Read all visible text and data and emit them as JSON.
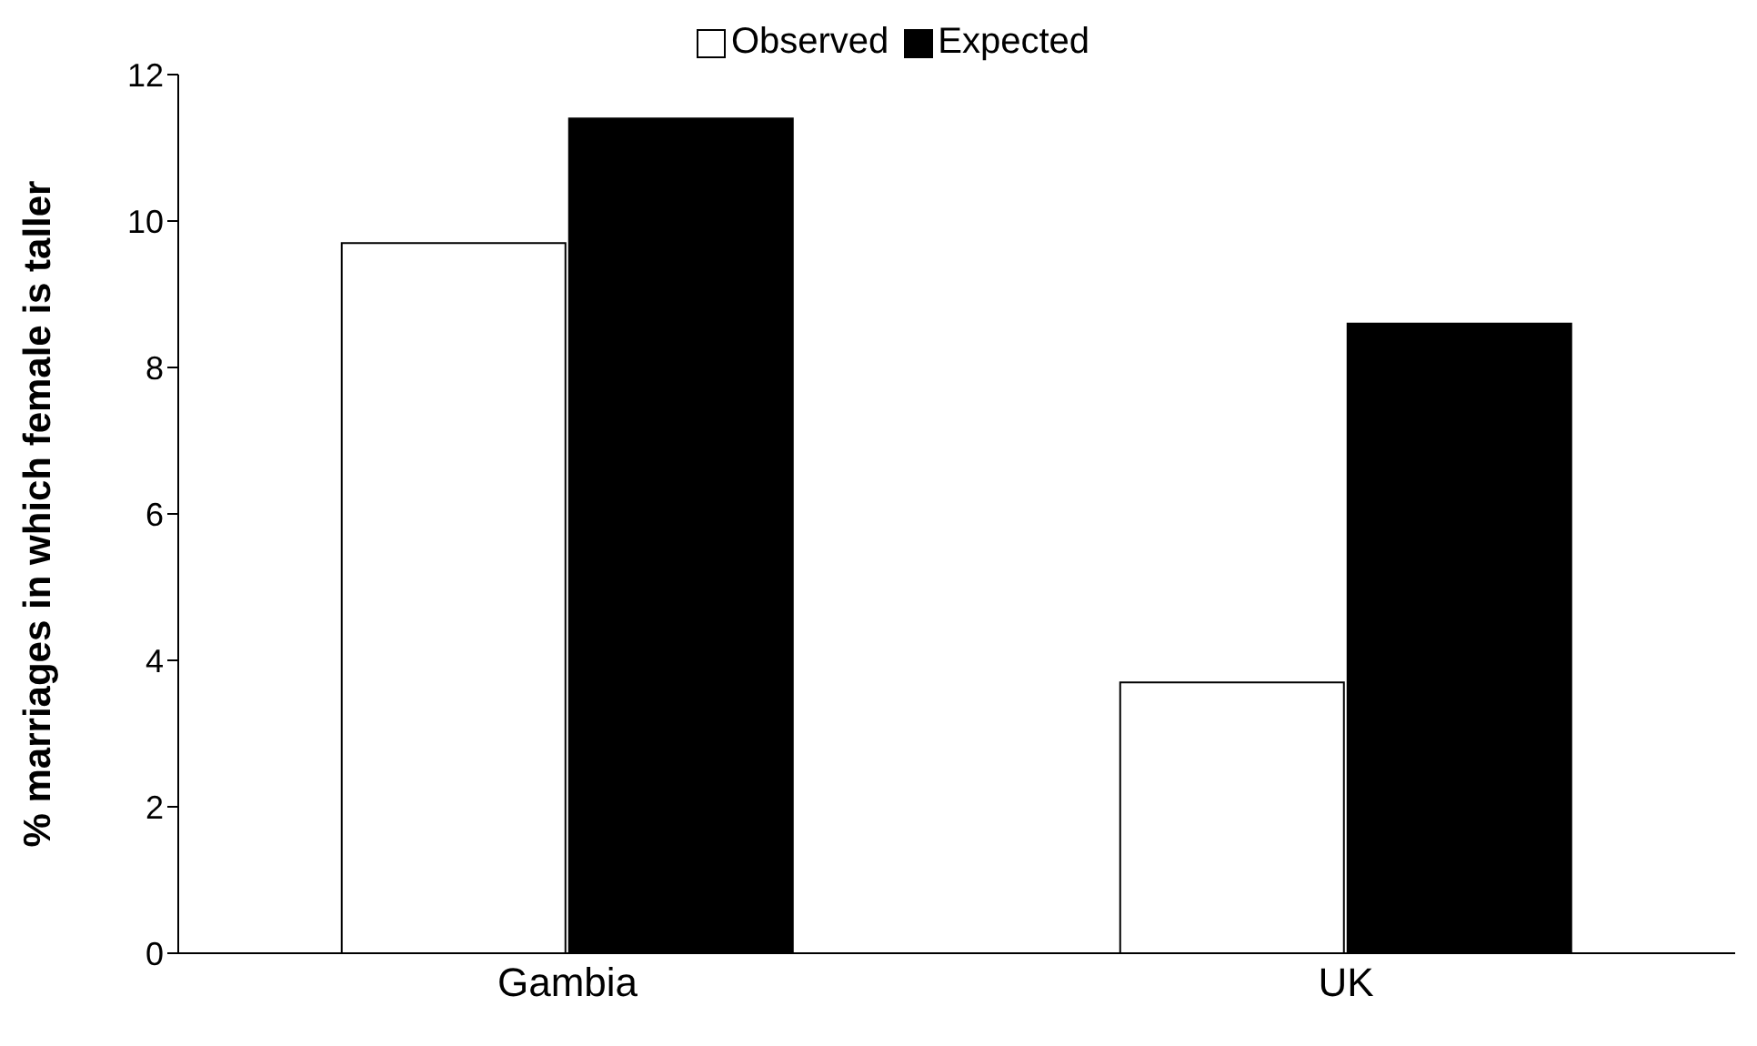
{
  "chart_data": {
    "type": "bar",
    "ylabel": "% marriages in which female is taller",
    "categories": [
      "Gambia",
      "UK"
    ],
    "series": [
      {
        "name": "Observed",
        "color": "#ffffff",
        "values": [
          9.7,
          3.7
        ]
      },
      {
        "name": "Expected",
        "color": "#000000",
        "values": [
          11.4,
          8.6
        ]
      }
    ],
    "ylim": [
      0,
      12
    ],
    "yticks": [
      0,
      2,
      4,
      6,
      8,
      10,
      12
    ],
    "legend": "top"
  }
}
